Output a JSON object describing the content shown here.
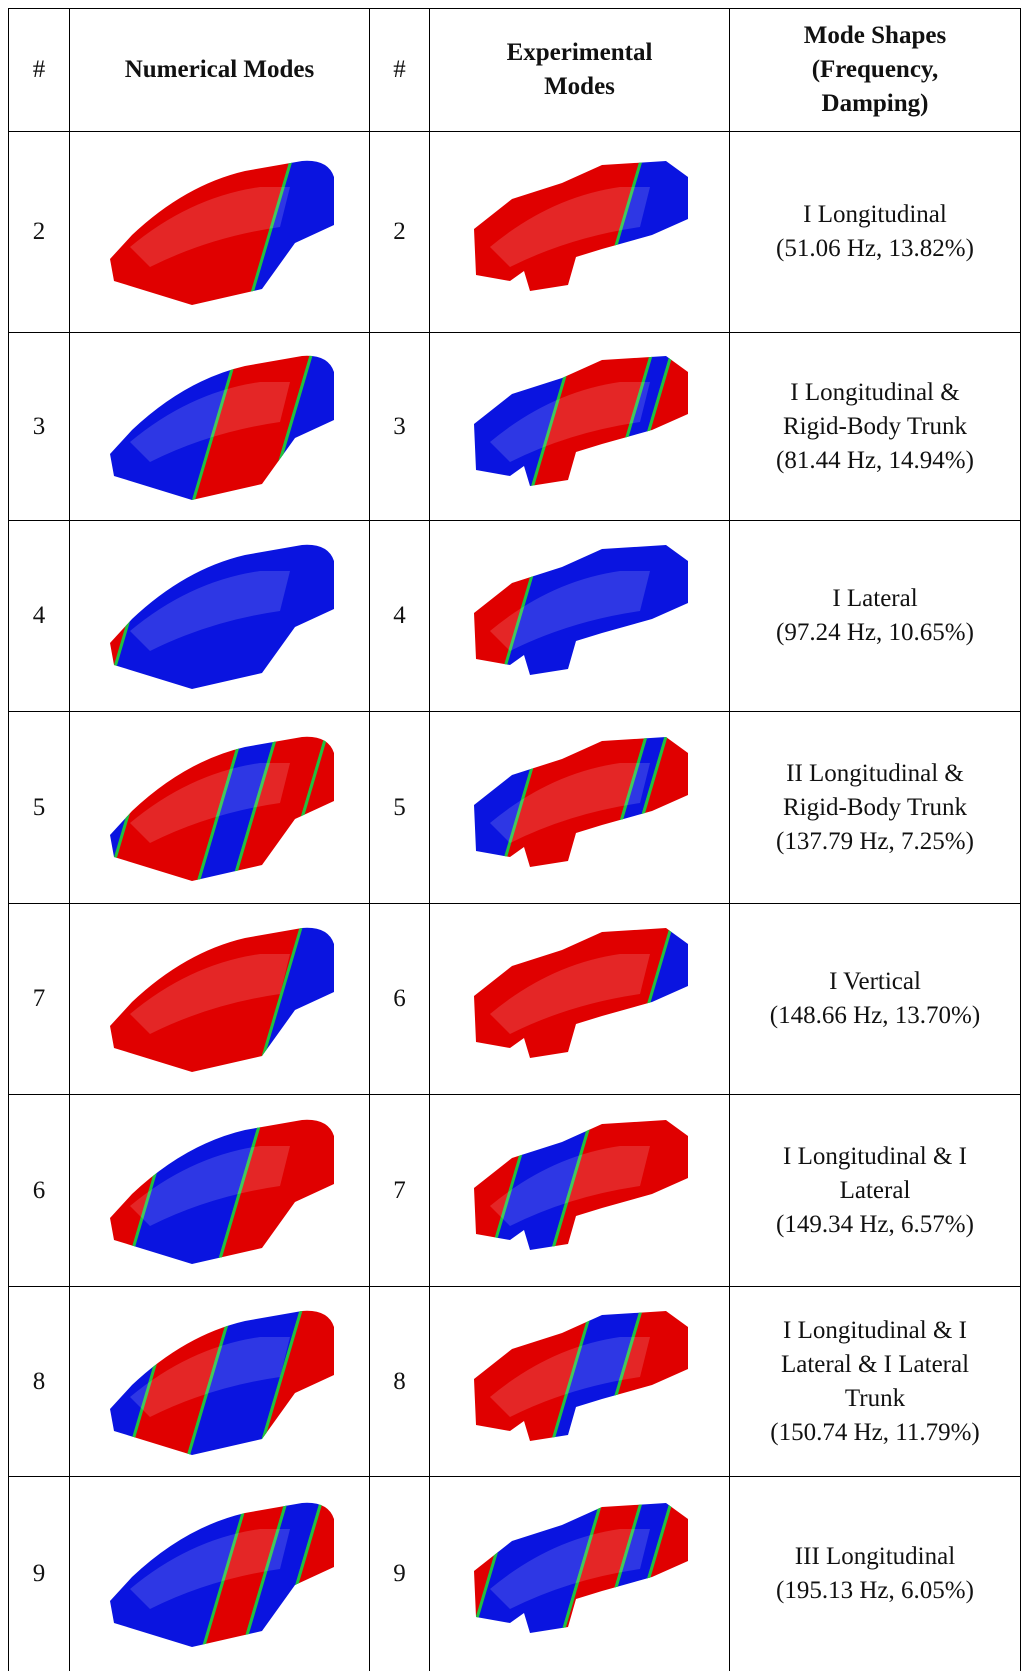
{
  "table": {
    "header": [
      "#",
      "Numerical Modes",
      "#",
      "Experimental Modes",
      "Mode Shapes (Frequency, Damping)"
    ],
    "rows": [
      {
        "numerical": "2",
        "experimental": "2",
        "description": [
          "I Longitudinal",
          "(51.06 Hz, 13.82%)"
        ]
      },
      {
        "numerical": "3",
        "experimental": "3",
        "description": [
          "I Longitudinal &",
          "Rigid-Body Trunk",
          "(81.44 Hz, 14.94%)"
        ]
      },
      {
        "numerical": "4",
        "experimental": "4",
        "description": [
          "I Lateral",
          "(97.24 Hz, 10.65%)"
        ]
      },
      {
        "numerical": "5",
        "experimental": "5",
        "description": [
          "II Longitudinal &",
          "Rigid-Body Trunk",
          "(137.79 Hz, 7.25%)"
        ]
      },
      {
        "numerical": "7",
        "experimental": "6",
        "description": [
          "I Vertical",
          "(148.66 Hz, 13.70%)"
        ]
      },
      {
        "numerical": "6",
        "experimental": "7",
        "description": [
          "I Longitudinal & I",
          "Lateral",
          "(149.34 Hz, 6.57%)"
        ]
      },
      {
        "numerical": "8",
        "experimental": "8",
        "description": [
          "I Longitudinal & I",
          "Lateral & I Lateral",
          "Trunk",
          "(150.74 Hz, 11.79%)"
        ]
      },
      {
        "numerical": "9",
        "experimental": "9",
        "description": [
          "III Longitudinal",
          "(195.13 Hz, 6.05%)"
        ]
      }
    ]
  }
}
